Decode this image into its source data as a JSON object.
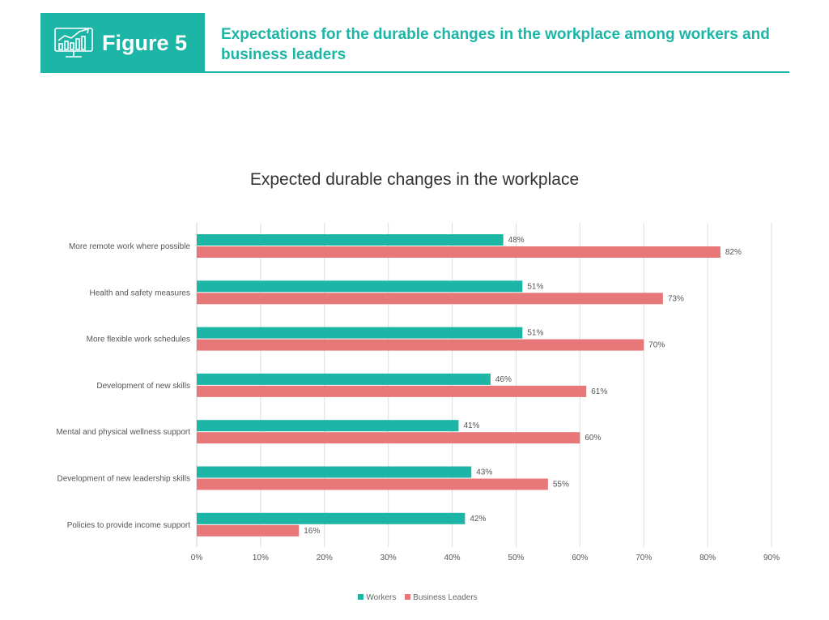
{
  "header": {
    "figure_label": "Figure 5",
    "title": "Expectations for the durable changes in the workplace among workers and business leaders",
    "icon": "chart-monitor-icon"
  },
  "chart_data": {
    "type": "bar",
    "orientation": "horizontal",
    "title": "Expected durable changes in the workplace",
    "categories": [
      "More remote work where possible",
      "Health and safety measures",
      "More flexible work schedules",
      "Development of new skills",
      "Mental and physical wellness support",
      "Development of new leadership skills",
      "Policies to provide income support"
    ],
    "series": [
      {
        "name": "Workers",
        "color": "#1db5a6",
        "values": [
          48,
          51,
          51,
          46,
          41,
          43,
          42
        ],
        "labels": [
          "48%",
          "51%",
          "51%",
          "46%",
          "41%",
          "43%",
          "42%"
        ]
      },
      {
        "name": "Business Leaders",
        "color": "#e8777a",
        "values": [
          82,
          73,
          70,
          61,
          60,
          55,
          16
        ],
        "labels": [
          "82%",
          "73%",
          "70%",
          "61%",
          "60%",
          "55%",
          "16%"
        ]
      }
    ],
    "xlim": [
      0,
      90
    ],
    "ticks": [
      "0%",
      "10%",
      "20%",
      "30%",
      "40%",
      "50%",
      "60%",
      "70%",
      "80%",
      "90%"
    ],
    "grid": true,
    "legend": "bottom"
  }
}
